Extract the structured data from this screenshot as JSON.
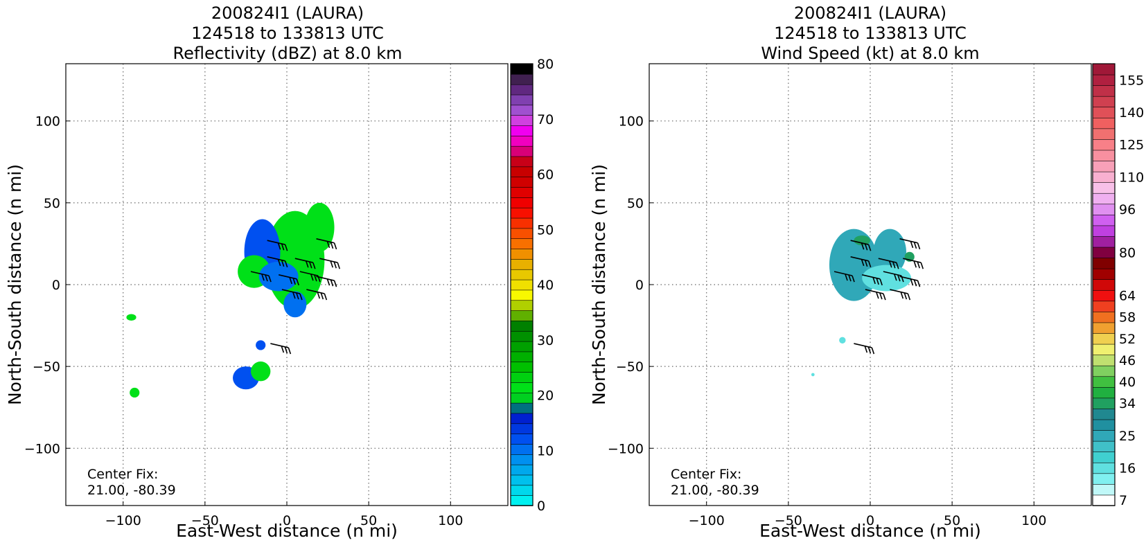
{
  "panels": [
    {
      "title_lines": [
        "200824I1 (LAURA)",
        "124518 to 133813 UTC",
        "Reflectivity (dBZ) at 8.0 km"
      ],
      "xlabel": "East-West distance (n mi)",
      "ylabel": "North-South distance (n mi)",
      "center_fix": [
        "Center Fix:",
        "21.00, -80.39"
      ],
      "colorbar": {
        "tick_labels": [
          "0",
          "10",
          "20",
          "30",
          "40",
          "50",
          "60",
          "70",
          "80"
        ],
        "tick_values": [
          0,
          10,
          20,
          30,
          40,
          50,
          60,
          70,
          80
        ],
        "range": [
          0,
          80
        ],
        "colors": [
          "#00f0f0",
          "#00d8ec",
          "#00c0ec",
          "#00a8ec",
          "#0090f0",
          "#0070f0",
          "#0050f0",
          "#0038e0",
          "#0020d0",
          "#007080",
          "#00d020",
          "#00e018",
          "#00d010",
          "#00c000",
          "#00b000",
          "#00a000",
          "#009000",
          "#008000",
          "#60b000",
          "#b0d000",
          "#f8f800",
          "#f0e000",
          "#e8c800",
          "#e8b000",
          "#f09000",
          "#f87000",
          "#f85000",
          "#f83000",
          "#f81000",
          "#f00000",
          "#e00000",
          "#d00000",
          "#c80000",
          "#c80018",
          "#d80078",
          "#f000c0",
          "#f000f0",
          "#d040e0",
          "#a050d0",
          "#8040b0",
          "#602880",
          "#402050",
          "#000000"
        ]
      }
    },
    {
      "title_lines": [
        "200824I1 (LAURA)",
        "124518 to 133813 UTC",
        "Wind Speed (kt) at 8.0 km"
      ],
      "xlabel": "East-West distance (n mi)",
      "ylabel": "North-South distance (n mi)",
      "center_fix": [
        "Center Fix:",
        "21.00, -80.39"
      ],
      "colorbar": {
        "tick_labels": [
          "7",
          "16",
          "25",
          "34",
          "40",
          "46",
          "52",
          "58",
          "64",
          "80",
          "96",
          "110",
          "125",
          "140",
          "155"
        ],
        "colors": [
          "#ffffff",
          "#c0f8f8",
          "#80f0f0",
          "#60e0e0",
          "#40d0d0",
          "#40c0c8",
          "#30a8b8",
          "#2090a0",
          "#208890",
          "#20a060",
          "#20b040",
          "#40c040",
          "#80d060",
          "#c0e070",
          "#f0f070",
          "#f0d050",
          "#f0a030",
          "#f07020",
          "#f04020",
          "#f01010",
          "#d00808",
          "#a00000",
          "#800000",
          "#800040",
          "#a020a0",
          "#c040e0",
          "#d060f0",
          "#e090f0",
          "#f0b0f0",
          "#f8c0e8",
          "#f8b0d0",
          "#f8a0b8",
          "#f890a0",
          "#f88088",
          "#f07070",
          "#f06060",
          "#e05058",
          "#d04050",
          "#c03048",
          "#b02040",
          "#a01838"
        ],
        "tick_index": [
          0,
          3,
          6,
          9,
          11,
          13,
          15,
          17,
          19,
          23,
          27,
          30,
          33,
          36,
          39
        ]
      }
    }
  ],
  "chart_data": [
    {
      "type": "heatmap",
      "title": "200824I1 (LAURA) 124518 to 133813 UTC Reflectivity (dBZ) at 8.0 km",
      "xlabel": "East-West distance (n mi)",
      "ylabel": "North-South distance (n mi)",
      "xlim": [
        -135,
        135
      ],
      "ylim": [
        -135,
        135
      ],
      "x_ticks": [
        -100,
        -50,
        0,
        50,
        100
      ],
      "y_ticks": [
        -100,
        -50,
        0,
        50,
        100
      ],
      "x_tick_labels": [
        "−100",
        "−50",
        "0",
        "50",
        "100"
      ],
      "y_tick_labels": [
        "−100",
        "−50",
        "0",
        "50",
        "100"
      ],
      "grid": true,
      "colorbar_label_units": "dBZ",
      "colorbar_range": [
        0,
        80
      ],
      "regions": [
        {
          "x": 5,
          "y": 15,
          "rx": 18,
          "ry": 30,
          "value": 22
        },
        {
          "x": 20,
          "y": 35,
          "rx": 9,
          "ry": 15,
          "value": 22
        },
        {
          "x": -15,
          "y": 20,
          "rx": 11,
          "ry": 20,
          "value": 12
        },
        {
          "x": -20,
          "y": 8,
          "rx": 10,
          "ry": 10,
          "value": 22
        },
        {
          "x": -5,
          "y": 5,
          "rx": 12,
          "ry": 9,
          "value": 10
        },
        {
          "x": 5,
          "y": -12,
          "rx": 7,
          "ry": 8,
          "value": 10
        },
        {
          "x": -25,
          "y": -57,
          "rx": 8,
          "ry": 7,
          "value": 12
        },
        {
          "x": -16,
          "y": -53,
          "rx": 6,
          "ry": 6,
          "value": 22
        },
        {
          "x": -93,
          "y": -66,
          "rx": 3,
          "ry": 3,
          "value": 22
        },
        {
          "x": -95,
          "y": -20,
          "rx": 3,
          "ry": 2,
          "value": 22
        },
        {
          "x": -16,
          "y": -37,
          "rx": 3,
          "ry": 3,
          "value": 12
        }
      ],
      "wind_barbs": [
        {
          "x": -12,
          "y": 27
        },
        {
          "x": 18,
          "y": 28
        },
        {
          "x": -12,
          "y": 17
        },
        {
          "x": 5,
          "y": 16
        },
        {
          "x": 20,
          "y": 16
        },
        {
          "x": -22,
          "y": 8
        },
        {
          "x": -5,
          "y": 6
        },
        {
          "x": 8,
          "y": 8
        },
        {
          "x": 18,
          "y": 5
        },
        {
          "x": -3,
          "y": -3
        },
        {
          "x": 12,
          "y": -3
        },
        {
          "x": -10,
          "y": -36
        }
      ],
      "annotations": [
        "Center Fix:",
        "21.00, -80.39"
      ]
    },
    {
      "type": "heatmap",
      "title": "200824I1 (LAURA) 124518 to 133813 UTC Wind Speed (kt) at 8.0 km",
      "xlabel": "East-West distance (n mi)",
      "ylabel": "North-South distance (n mi)",
      "xlim": [
        -135,
        135
      ],
      "ylim": [
        -135,
        135
      ],
      "x_ticks": [
        -100,
        -50,
        0,
        50,
        100
      ],
      "y_ticks": [
        -100,
        -50,
        0,
        50,
        100
      ],
      "x_tick_labels": [
        "−100",
        "−50",
        "0",
        "50",
        "100"
      ],
      "y_tick_labels": [
        "−100",
        "−50",
        "0",
        "50",
        "100"
      ],
      "grid": true,
      "colorbar_label_units": "kt",
      "colorbar_ticks": [
        7,
        16,
        25,
        34,
        40,
        46,
        52,
        58,
        64,
        80,
        96,
        110,
        125,
        140,
        155
      ],
      "regions": [
        {
          "x": -10,
          "y": 12,
          "rx": 15,
          "ry": 22,
          "value": 27
        },
        {
          "x": 12,
          "y": 20,
          "rx": 10,
          "ry": 14,
          "value": 27
        },
        {
          "x": 10,
          "y": 4,
          "rx": 15,
          "ry": 8,
          "value": 18
        },
        {
          "x": 8,
          "y": -8,
          "rx": 10,
          "ry": 4,
          "value": 12
        },
        {
          "x": -5,
          "y": 27,
          "rx": 5,
          "ry": 3,
          "value": 34
        },
        {
          "x": 24,
          "y": 17,
          "rx": 3,
          "ry": 3,
          "value": 34
        },
        {
          "x": -17,
          "y": -34,
          "rx": 2,
          "ry": 2,
          "value": 20
        },
        {
          "x": -35,
          "y": -55,
          "rx": 1,
          "ry": 1,
          "value": 16
        }
      ],
      "wind_barbs": [
        {
          "x": -12,
          "y": 27
        },
        {
          "x": 18,
          "y": 28
        },
        {
          "x": -12,
          "y": 17
        },
        {
          "x": 5,
          "y": 16
        },
        {
          "x": 20,
          "y": 16
        },
        {
          "x": -22,
          "y": 8
        },
        {
          "x": -5,
          "y": 6
        },
        {
          "x": 8,
          "y": 8
        },
        {
          "x": 18,
          "y": 5
        },
        {
          "x": -3,
          "y": -3
        },
        {
          "x": 12,
          "y": -3
        },
        {
          "x": -10,
          "y": -36
        }
      ],
      "annotations": [
        "Center Fix:",
        "21.00, -80.39"
      ]
    }
  ]
}
